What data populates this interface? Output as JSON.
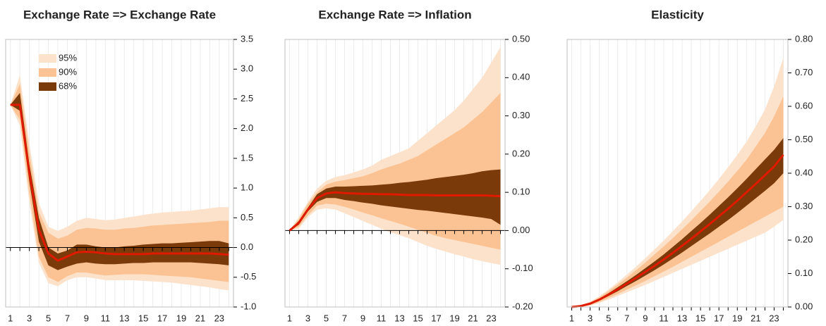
{
  "chart_data": [
    {
      "type": "fan",
      "title": "Exchange Rate => Exchange Rate",
      "legend": true,
      "x": [
        1,
        2,
        3,
        4,
        5,
        6,
        7,
        8,
        9,
        10,
        11,
        12,
        13,
        14,
        15,
        16,
        17,
        18,
        19,
        20,
        21,
        22,
        23,
        24
      ],
      "xlim": [
        0.5,
        24.5
      ],
      "xticks": [
        1,
        3,
        5,
        7,
        9,
        11,
        13,
        15,
        17,
        19,
        21,
        23
      ],
      "ylim": [
        -1,
        3.5
      ],
      "yticks": [
        {
          "value": -1,
          "label": "-1.0"
        },
        -0.5,
        {
          "value": 0,
          "label": "0.0"
        },
        0.5,
        {
          "value": 1,
          "label": "1.0"
        },
        1.5,
        {
          "value": 2,
          "label": "2.0"
        },
        2.5,
        {
          "value": 3,
          "label": "3.0"
        },
        3.5
      ],
      "series": [
        {
          "name": "95%",
          "color": "#fde2cb",
          "upper": [
            2.4,
            2.9,
            1.75,
            0.75,
            0.35,
            0.28,
            0.35,
            0.45,
            0.5,
            0.48,
            0.46,
            0.47,
            0.5,
            0.52,
            0.55,
            0.57,
            0.59,
            0.6,
            0.61,
            0.62,
            0.64,
            0.66,
            0.68,
            0.68
          ],
          "lower": [
            2.4,
            2.05,
            0.75,
            -0.25,
            -0.6,
            -0.65,
            -0.55,
            -0.5,
            -0.5,
            -0.52,
            -0.55,
            -0.55,
            -0.55,
            -0.55,
            -0.56,
            -0.57,
            -0.58,
            -0.59,
            -0.61,
            -0.63,
            -0.65,
            -0.67,
            -0.7,
            -0.72
          ]
        },
        {
          "name": "90%",
          "color": "#fbc393",
          "upper": [
            2.4,
            2.75,
            1.6,
            0.6,
            0.25,
            0.15,
            0.2,
            0.3,
            0.33,
            0.32,
            0.3,
            0.3,
            0.32,
            0.33,
            0.35,
            0.37,
            0.38,
            0.39,
            0.4,
            0.41,
            0.42,
            0.43,
            0.45,
            0.45
          ],
          "lower": [
            2.4,
            2.15,
            0.9,
            -0.15,
            -0.5,
            -0.58,
            -0.48,
            -0.42,
            -0.42,
            -0.45,
            -0.47,
            -0.46,
            -0.45,
            -0.45,
            -0.45,
            -0.46,
            -0.47,
            -0.48,
            -0.49,
            -0.5,
            -0.52,
            -0.54,
            -0.56,
            -0.58
          ]
        },
        {
          "name": "68%",
          "color": "#7b3a0a",
          "upper": [
            2.4,
            2.6,
            1.4,
            0.5,
            0.0,
            -0.1,
            -0.05,
            0.05,
            0.05,
            0.02,
            0.0,
            0.0,
            0.02,
            0.03,
            0.05,
            0.06,
            0.07,
            0.07,
            0.08,
            0.09,
            0.1,
            0.11,
            0.11,
            0.07
          ],
          "lower": [
            2.4,
            2.3,
            1.1,
            0.1,
            -0.3,
            -0.38,
            -0.32,
            -0.27,
            -0.25,
            -0.27,
            -0.28,
            -0.28,
            -0.27,
            -0.26,
            -0.26,
            -0.25,
            -0.25,
            -0.25,
            -0.25,
            -0.25,
            -0.26,
            -0.27,
            -0.28,
            -0.3
          ]
        },
        {
          "color": "#e01a00",
          "values": [
            2.4,
            2.4,
            1.25,
            0.3,
            -0.1,
            -0.22,
            -0.15,
            -0.08,
            -0.07,
            -0.08,
            -0.1,
            -0.11,
            -0.11,
            -0.11,
            -0.11,
            -0.1,
            -0.1,
            -0.1,
            -0.1,
            -0.1,
            -0.1,
            -0.1,
            -0.11,
            -0.12
          ]
        }
      ]
    },
    {
      "type": "fan",
      "title": "Exchange Rate => Inflation",
      "x": [
        1,
        2,
        3,
        4,
        5,
        6,
        7,
        8,
        9,
        10,
        11,
        12,
        13,
        14,
        15,
        16,
        17,
        18,
        19,
        20,
        21,
        22,
        23,
        24
      ],
      "xlim": [
        0.5,
        24.5
      ],
      "xticks": [
        1,
        3,
        5,
        7,
        9,
        11,
        13,
        15,
        17,
        19,
        21,
        23
      ],
      "ylim": [
        -0.2,
        0.5
      ],
      "yticks": [
        {
          "value": -0.2,
          "label": "-0.20"
        },
        {
          "value": -0.1,
          "label": "-0.10"
        },
        {
          "value": 0,
          "label": "0.00"
        },
        {
          "value": 0.1,
          "label": "0.10"
        },
        {
          "value": 0.2,
          "label": "0.20"
        },
        {
          "value": 0.3,
          "label": "0.30"
        },
        {
          "value": 0.4,
          "label": "0.40"
        },
        {
          "value": 0.5,
          "label": "0.50"
        }
      ],
      "series": [
        {
          "color": "#fde2cb",
          "upper": [
            0,
            0.035,
            0.075,
            0.11,
            0.13,
            0.14,
            0.145,
            0.152,
            0.16,
            0.17,
            0.185,
            0.195,
            0.205,
            0.215,
            0.235,
            0.255,
            0.275,
            0.295,
            0.315,
            0.34,
            0.37,
            0.4,
            0.44,
            0.48
          ],
          "lower": [
            0,
            0.005,
            0.035,
            0.055,
            0.058,
            0.055,
            0.045,
            0.035,
            0.025,
            0.015,
            0.005,
            -0.005,
            -0.012,
            -0.02,
            -0.03,
            -0.04,
            -0.048,
            -0.055,
            -0.062,
            -0.068,
            -0.075,
            -0.08,
            -0.085,
            -0.09
          ]
        },
        {
          "color": "#fbc393",
          "upper": [
            0,
            0.03,
            0.07,
            0.1,
            0.12,
            0.128,
            0.132,
            0.137,
            0.142,
            0.15,
            0.16,
            0.168,
            0.175,
            0.185,
            0.195,
            0.21,
            0.225,
            0.24,
            0.255,
            0.27,
            0.29,
            0.31,
            0.335,
            0.36
          ],
          "lower": [
            0,
            0.01,
            0.04,
            0.065,
            0.07,
            0.068,
            0.062,
            0.055,
            0.047,
            0.04,
            0.032,
            0.025,
            0.018,
            0.01,
            0.002,
            -0.006,
            -0.014,
            -0.02,
            -0.025,
            -0.03,
            -0.035,
            -0.04,
            -0.045,
            -0.05
          ]
        },
        {
          "color": "#7b3a0a",
          "upper": [
            0,
            0.025,
            0.06,
            0.095,
            0.11,
            0.115,
            0.115,
            0.116,
            0.117,
            0.118,
            0.12,
            0.122,
            0.125,
            0.127,
            0.13,
            0.133,
            0.137,
            0.14,
            0.143,
            0.146,
            0.15,
            0.155,
            0.158,
            0.16
          ],
          "lower": [
            0,
            0.015,
            0.05,
            0.075,
            0.085,
            0.085,
            0.08,
            0.077,
            0.073,
            0.07,
            0.066,
            0.063,
            0.06,
            0.057,
            0.054,
            0.052,
            0.049,
            0.046,
            0.043,
            0.04,
            0.037,
            0.034,
            0.03,
            0.015
          ]
        },
        {
          "color": "#e01a00",
          "values": [
            0,
            0.02,
            0.055,
            0.085,
            0.097,
            0.1,
            0.098,
            0.097,
            0.096,
            0.096,
            0.095,
            0.095,
            0.094,
            0.093,
            0.093,
            0.093,
            0.092,
            0.092,
            0.092,
            0.092,
            0.092,
            0.092,
            0.091,
            0.09
          ]
        }
      ]
    },
    {
      "type": "fan",
      "title": "Elasticity",
      "x": [
        1,
        2,
        3,
        4,
        5,
        6,
        7,
        8,
        9,
        10,
        11,
        12,
        13,
        14,
        15,
        16,
        17,
        18,
        19,
        20,
        21,
        22,
        23,
        24
      ],
      "xlim": [
        0.5,
        24.5
      ],
      "xticks": [
        1,
        3,
        5,
        7,
        9,
        11,
        13,
        15,
        17,
        19,
        21,
        23
      ],
      "ylim": [
        0,
        0.8
      ],
      "yticks": [
        {
          "value": 0,
          "label": "0.00"
        },
        {
          "value": 0.1,
          "label": "0.10"
        },
        {
          "value": 0.2,
          "label": "0.20"
        },
        {
          "value": 0.3,
          "label": "0.30"
        },
        {
          "value": 0.4,
          "label": "0.40"
        },
        {
          "value": 0.5,
          "label": "0.50"
        },
        {
          "value": 0.6,
          "label": "0.60"
        },
        {
          "value": 0.7,
          "label": "0.70"
        },
        {
          "value": 0.8,
          "label": "0.80"
        }
      ],
      "series": [
        {
          "color": "#fde2cb",
          "upper": [
            0,
            0.006,
            0.016,
            0.032,
            0.052,
            0.074,
            0.097,
            0.121,
            0.146,
            0.172,
            0.199,
            0.227,
            0.256,
            0.286,
            0.317,
            0.349,
            0.383,
            0.418,
            0.455,
            0.494,
            0.54,
            0.59,
            0.66,
            0.745
          ],
          "lower": [
            0,
            0.001,
            0.004,
            0.012,
            0.022,
            0.033,
            0.044,
            0.055,
            0.066,
            0.078,
            0.09,
            0.102,
            0.114,
            0.126,
            0.138,
            0.15,
            0.162,
            0.174,
            0.186,
            0.198,
            0.21,
            0.222,
            0.24,
            0.26
          ]
        },
        {
          "color": "#fbc393",
          "upper": [
            0,
            0.005,
            0.014,
            0.029,
            0.047,
            0.067,
            0.088,
            0.11,
            0.133,
            0.157,
            0.181,
            0.206,
            0.232,
            0.259,
            0.287,
            0.315,
            0.345,
            0.375,
            0.407,
            0.44,
            0.48,
            0.52,
            0.57,
            0.63
          ],
          "lower": [
            0,
            0.001,
            0.006,
            0.015,
            0.027,
            0.039,
            0.052,
            0.065,
            0.078,
            0.092,
            0.106,
            0.12,
            0.135,
            0.15,
            0.165,
            0.18,
            0.195,
            0.21,
            0.225,
            0.24,
            0.255,
            0.27,
            0.285,
            0.3
          ]
        },
        {
          "color": "#7b3a0a",
          "upper": [
            0,
            0.004,
            0.012,
            0.025,
            0.041,
            0.059,
            0.077,
            0.096,
            0.116,
            0.136,
            0.157,
            0.18,
            0.203,
            0.227,
            0.251,
            0.276,
            0.302,
            0.328,
            0.355,
            0.383,
            0.412,
            0.441,
            0.47,
            0.505
          ],
          "lower": [
            0,
            0.002,
            0.008,
            0.019,
            0.033,
            0.047,
            0.063,
            0.078,
            0.094,
            0.11,
            0.127,
            0.145,
            0.163,
            0.182,
            0.201,
            0.22,
            0.24,
            0.26,
            0.281,
            0.303,
            0.325,
            0.347,
            0.37,
            0.4
          ]
        },
        {
          "color": "#e01a00",
          "values": [
            0,
            0.003,
            0.01,
            0.022,
            0.037,
            0.053,
            0.07,
            0.087,
            0.105,
            0.123,
            0.142,
            0.162,
            0.183,
            0.204,
            0.226,
            0.248,
            0.271,
            0.294,
            0.318,
            0.343,
            0.368,
            0.394,
            0.42,
            0.455
          ]
        }
      ]
    }
  ]
}
